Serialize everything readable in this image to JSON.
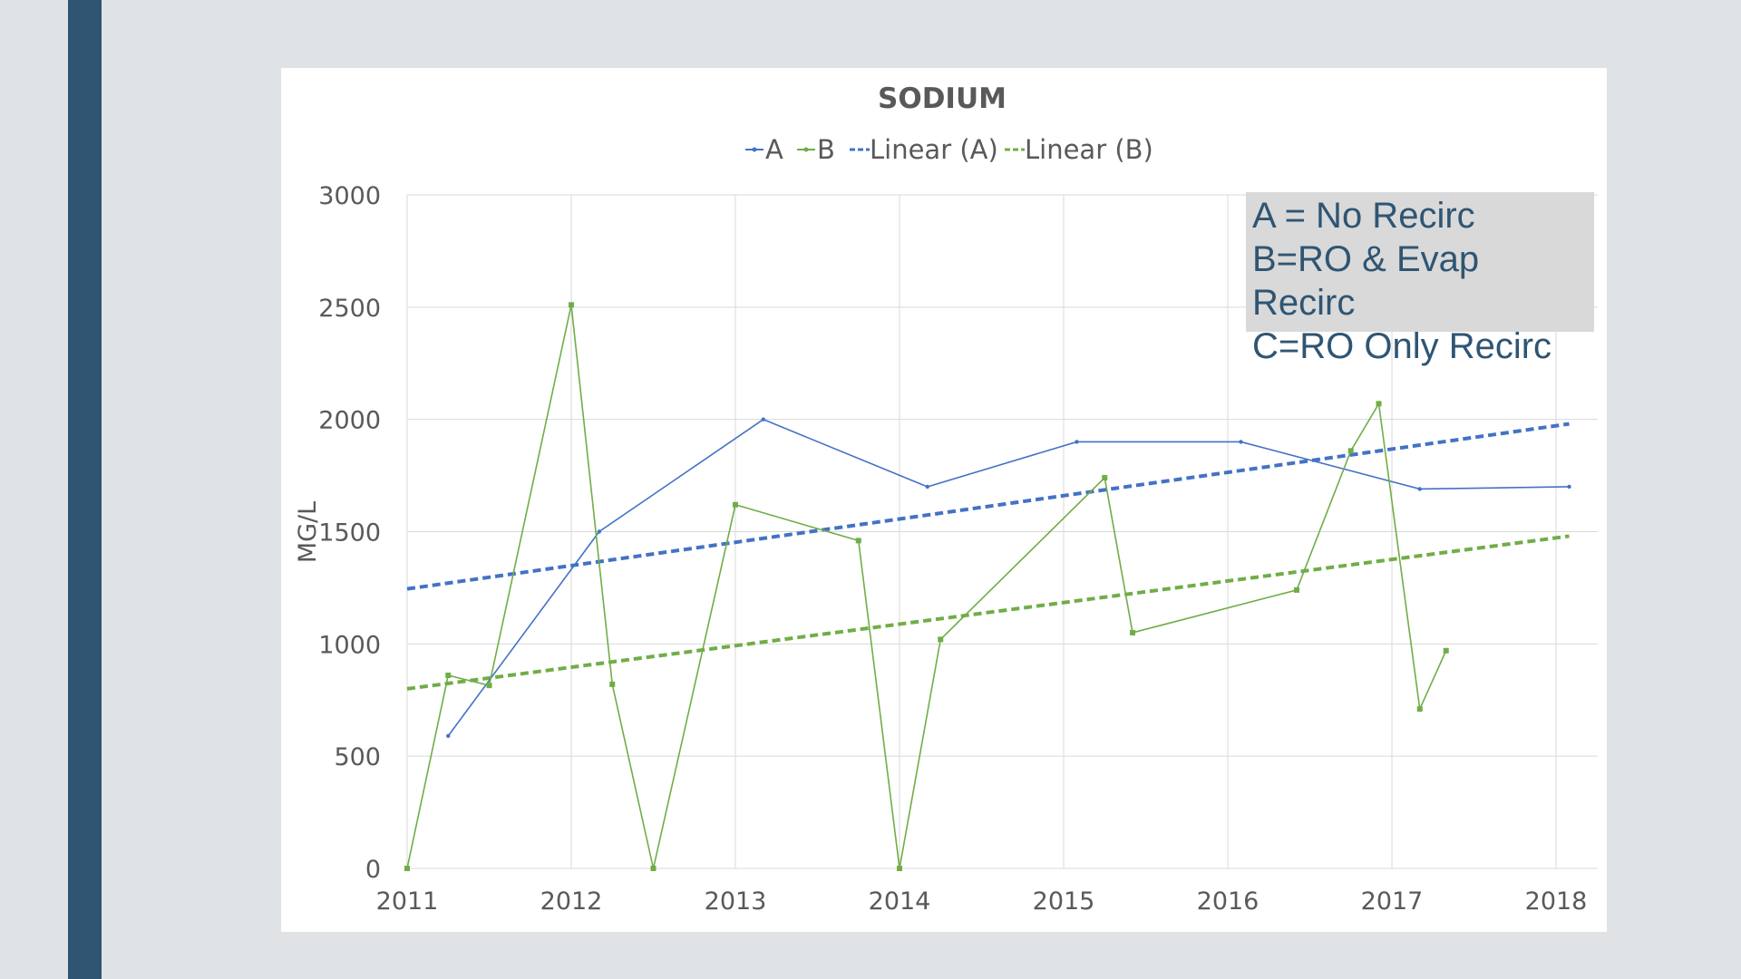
{
  "colors": {
    "background": "#dfe3e6",
    "sidebar": "#2f5573",
    "series_a": "#4472c4",
    "series_b": "#70ad47",
    "annotation_bg": "#d9d9d9",
    "annotation_text": "#2f5573",
    "grid": "#d9d9d9",
    "text": "#595959"
  },
  "annotation": {
    "line1": "A = No Recirc",
    "line2": "B=RO & Evap",
    "line3": "Recirc",
    "line4": "C=RO Only Recirc"
  },
  "chart_data": {
    "type": "line",
    "title": "SODIUM",
    "xlabel": "",
    "ylabel": "MG/L",
    "xlim": [
      2011,
      2018
    ],
    "ylim": [
      0,
      3000
    ],
    "x_ticks": [
      "2011",
      "2012",
      "2013",
      "2014",
      "2015",
      "2016",
      "2017",
      "2018"
    ],
    "y_ticks": [
      "0",
      "500",
      "1000",
      "1500",
      "2000",
      "2500",
      "3000"
    ],
    "grid": true,
    "legend_position": "top-center",
    "legend": [
      "A",
      "B",
      "Linear (A)",
      "Linear (B)"
    ],
    "series": [
      {
        "name": "A",
        "color": "#4472c4",
        "points": [
          [
            2011.25,
            590
          ],
          [
            2012.17,
            1500
          ],
          [
            2013.17,
            2000
          ],
          [
            2014.17,
            1700
          ],
          [
            2015.08,
            1900
          ],
          [
            2016.08,
            1900
          ],
          [
            2017.17,
            1690
          ],
          [
            2018.08,
            1700
          ]
        ]
      },
      {
        "name": "B",
        "color": "#70ad47",
        "points": [
          [
            2011.0,
            0
          ],
          [
            2011.25,
            860
          ],
          [
            2011.5,
            815
          ],
          [
            2012.0,
            2510
          ],
          [
            2012.25,
            820
          ],
          [
            2012.5,
            0
          ],
          [
            2013.0,
            1620
          ],
          [
            2013.75,
            1460
          ],
          [
            2014.0,
            0
          ],
          [
            2014.25,
            1020
          ],
          [
            2015.25,
            1740
          ],
          [
            2015.42,
            1050
          ],
          [
            2016.42,
            1240
          ],
          [
            2016.75,
            1860
          ],
          [
            2016.92,
            2070
          ],
          [
            2017.17,
            710
          ],
          [
            2017.33,
            970
          ]
        ]
      }
    ],
    "trendlines": [
      {
        "name": "Linear (A)",
        "color": "#4472c4",
        "points": [
          [
            2011.0,
            1245
          ],
          [
            2018.08,
            1980
          ]
        ]
      },
      {
        "name": "Linear (B)",
        "color": "#70ad47",
        "points": [
          [
            2011.0,
            800
          ],
          [
            2018.08,
            1480
          ]
        ]
      }
    ]
  }
}
